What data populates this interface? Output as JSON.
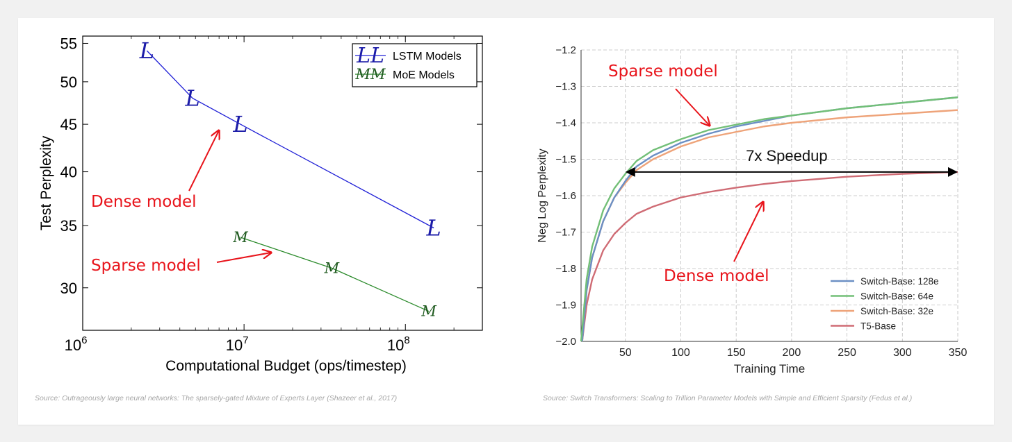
{
  "sources": {
    "left": "Source: Outrageously large neural networks: The sparsely-gated Mixture of Experts Layer (Shazeer et al., 2017)",
    "right": "Source: Switch Transformers: Scaling to Trillion Parameter Models with Simple and Efficient Sparsity (Fedus et al.)"
  },
  "annotations": {
    "left_dense": "Dense model",
    "left_sparse": "Sparse model",
    "right_sparse": "Sparse model",
    "right_dense": "Dense model",
    "speedup": "7x Speedup"
  },
  "colors": {
    "annotation_red": "#e8141b",
    "lstm_blue": "#1f1fd6",
    "moe_green": "#2a8a2a",
    "switch128": "#6b8fc4",
    "switch64": "#72bf77",
    "switch32": "#eea379",
    "t5": "#cf6b74"
  },
  "chart_data": [
    {
      "type": "line",
      "xlabel": "Computational Budget (ops/timestep)",
      "ylabel": "Test Perplexity",
      "x_scale": "log",
      "y_scale": "log",
      "xlim": [
        1000000,
        300000000
      ],
      "ylim": [
        27,
        56
      ],
      "x_ticks": [
        1000000,
        10000000,
        100000000
      ],
      "x_tick_labels": [
        {
          "base": "10",
          "exp": "6"
        },
        {
          "base": "10",
          "exp": "7"
        },
        {
          "base": "10",
          "exp": "8"
        }
      ],
      "y_ticks": [
        30,
        35,
        40,
        45,
        50,
        55
      ],
      "y_tick_labels": [
        "30",
        "35",
        "40",
        "45",
        "50",
        "55"
      ],
      "legend_position": "top-right",
      "series": [
        {
          "name": "LSTM Models",
          "marker": "L",
          "legend_marker": "LL",
          "color": "#1f1fd6",
          "x": [
            2500000,
            4800000,
            9500000,
            150000000
          ],
          "y": [
            54,
            48,
            45,
            34.8
          ]
        },
        {
          "name": "MoE Models",
          "marker": "M",
          "legend_marker": "MM",
          "color": "#2a8a2a",
          "x": [
            9500000,
            35000000,
            140000000
          ],
          "y": [
            34,
            31.5,
            28.3
          ]
        }
      ]
    },
    {
      "type": "line",
      "xlabel": "Training Time",
      "ylabel": "Neg Log Perplexity",
      "xlim": [
        10,
        350
      ],
      "ylim": [
        -2.0,
        -1.2
      ],
      "x_ticks": [
        50,
        100,
        150,
        200,
        250,
        300,
        350
      ],
      "x_tick_labels": [
        "50",
        "100",
        "150",
        "200",
        "250",
        "300",
        "350"
      ],
      "y_ticks": [
        -2.0,
        -1.9,
        -1.8,
        -1.7,
        -1.6,
        -1.5,
        -1.4,
        -1.3,
        -1.2
      ],
      "y_tick_labels": [
        "−2.0",
        "−1.9",
        "−1.8",
        "−1.7",
        "−1.6",
        "−1.5",
        "−1.4",
        "−1.3",
        "−1.2"
      ],
      "grid": true,
      "legend_position": "bottom-right",
      "series": [
        {
          "name": "Switch-Base: 128e",
          "color": "#6b8fc4",
          "x": [
            11,
            15,
            20,
            30,
            40,
            50,
            60,
            75,
            100,
            125,
            150,
            175,
            200,
            250,
            300,
            350
          ],
          "y": [
            -2.0,
            -1.86,
            -1.77,
            -1.67,
            -1.605,
            -1.56,
            -1.52,
            -1.49,
            -1.455,
            -1.43,
            -1.41,
            -1.395,
            -1.38,
            -1.36,
            -1.345,
            -1.33
          ]
        },
        {
          "name": "Switch-Base: 64e",
          "color": "#72bf77",
          "x": [
            10,
            15,
            20,
            30,
            40,
            50,
            60,
            75,
            100,
            125,
            150,
            175,
            200,
            250,
            300,
            350
          ],
          "y": [
            -2.0,
            -1.83,
            -1.74,
            -1.64,
            -1.58,
            -1.54,
            -1.505,
            -1.475,
            -1.445,
            -1.42,
            -1.405,
            -1.39,
            -1.38,
            -1.36,
            -1.345,
            -1.33
          ]
        },
        {
          "name": "Switch-Base: 32e",
          "color": "#eea379",
          "x": [
            11,
            15,
            20,
            30,
            40,
            50,
            60,
            75,
            100,
            125,
            150,
            175,
            200,
            250,
            300,
            350
          ],
          "y": [
            -2.0,
            -1.86,
            -1.77,
            -1.67,
            -1.605,
            -1.565,
            -1.53,
            -1.5,
            -1.465,
            -1.44,
            -1.425,
            -1.41,
            -1.4,
            -1.385,
            -1.375,
            -1.365
          ]
        },
        {
          "name": "T5-Base",
          "color": "#cf6b74",
          "x": [
            11,
            15,
            20,
            30,
            40,
            50,
            60,
            75,
            100,
            125,
            150,
            175,
            200,
            250,
            300,
            350
          ],
          "y": [
            -2.0,
            -1.9,
            -1.83,
            -1.75,
            -1.705,
            -1.675,
            -1.65,
            -1.63,
            -1.605,
            -1.59,
            -1.578,
            -1.568,
            -1.56,
            -1.548,
            -1.54,
            -1.535
          ]
        }
      ]
    }
  ]
}
